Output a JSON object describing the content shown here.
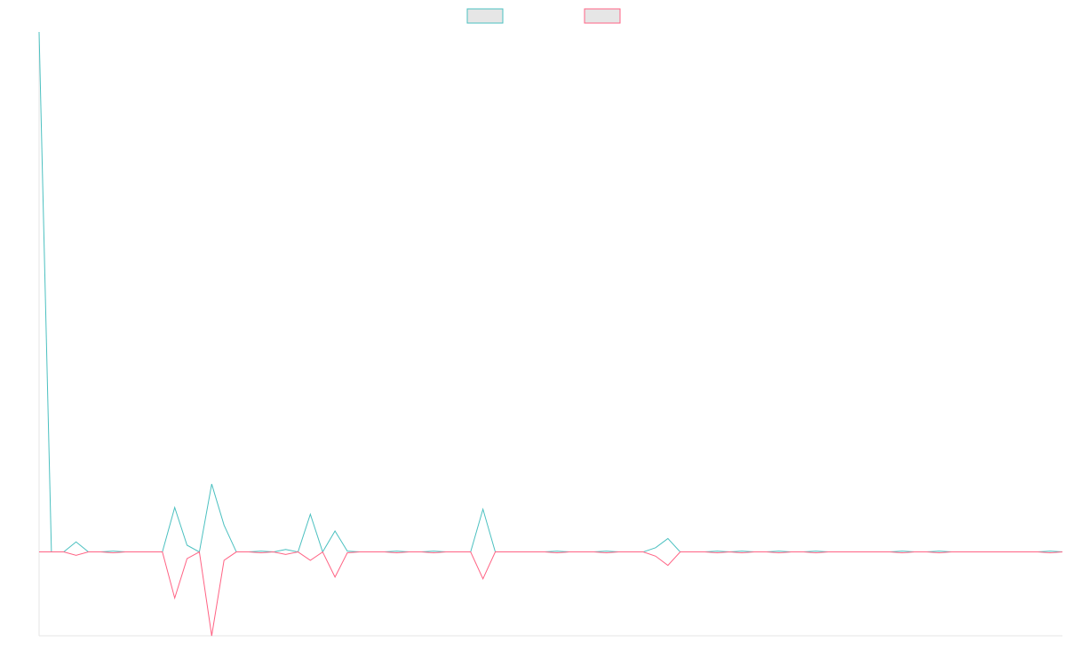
{
  "chart_data": {
    "type": "line",
    "title": "",
    "xlabel": "",
    "ylabel": "",
    "grid": false,
    "legend_position": "top-center",
    "x": [
      0,
      1,
      2,
      3,
      4,
      5,
      6,
      7,
      8,
      9,
      10,
      11,
      12,
      13,
      14,
      15,
      16,
      17,
      18,
      19,
      20,
      21,
      22,
      23,
      24,
      25,
      26,
      27,
      28,
      29,
      30,
      31,
      32,
      33,
      34,
      35,
      36,
      37,
      38,
      39,
      40,
      41,
      42,
      43,
      44,
      45,
      46,
      47,
      48,
      49,
      50,
      51,
      52,
      53,
      54,
      55,
      56,
      57,
      58,
      59,
      60,
      61,
      62,
      63,
      64,
      65,
      66,
      67,
      68,
      69,
      70,
      71,
      72,
      73,
      74,
      75,
      76,
      77,
      78,
      79,
      80,
      81,
      82,
      83
    ],
    "ylim": [
      -100,
      620
    ],
    "series": [
      {
        "name": "",
        "color": "#4bc0c0",
        "values": [
          620,
          0,
          0,
          12,
          0,
          0,
          1,
          0,
          0,
          0,
          0,
          53,
          8,
          0,
          81,
          32,
          0,
          0,
          1,
          0,
          3,
          0,
          45,
          0,
          25,
          1,
          0,
          0,
          0,
          1,
          0,
          0,
          1,
          0,
          0,
          0,
          51,
          0,
          0,
          0,
          0,
          0,
          1,
          0,
          0,
          0,
          1,
          0,
          0,
          0,
          5,
          16,
          0,
          0,
          0,
          1,
          0,
          1,
          0,
          0,
          1,
          0,
          0,
          1,
          0,
          0,
          0,
          0,
          0,
          0,
          1,
          0,
          0,
          1,
          0,
          0,
          0,
          0,
          0,
          0,
          0,
          0,
          1,
          0
        ]
      },
      {
        "name": "",
        "color": "#ff6384",
        "values": [
          0,
          0,
          0,
          -4,
          0,
          0,
          -1,
          0,
          0,
          0,
          0,
          -55,
          -8,
          0,
          -100,
          -10,
          0,
          0,
          -1,
          0,
          -3,
          0,
          -10,
          0,
          -30,
          -1,
          0,
          0,
          0,
          -1,
          0,
          0,
          -1,
          0,
          0,
          0,
          -32,
          0,
          0,
          0,
          0,
          0,
          -1,
          0,
          0,
          0,
          -1,
          0,
          0,
          0,
          -5,
          -16,
          0,
          0,
          0,
          -1,
          0,
          -1,
          0,
          0,
          -1,
          0,
          0,
          -1,
          0,
          0,
          0,
          0,
          0,
          0,
          -1,
          0,
          0,
          -1,
          0,
          0,
          0,
          0,
          0,
          0,
          0,
          0,
          -1,
          0
        ]
      }
    ]
  }
}
